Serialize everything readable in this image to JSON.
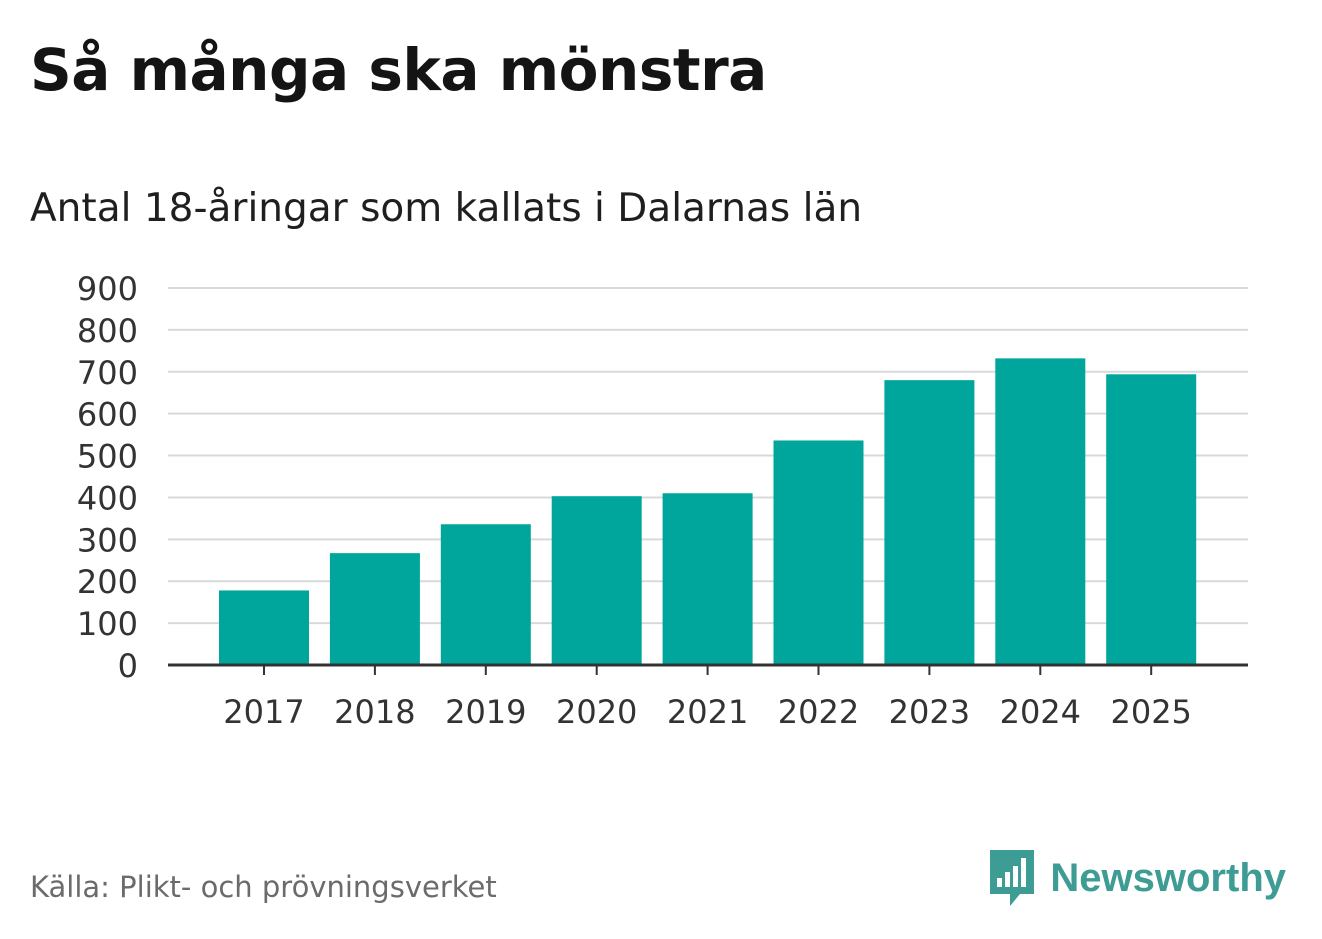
{
  "title": "Så många ska mönstra",
  "subtitle": "Antal 18-åringar som kallats i Dalarnas län",
  "source": "Källa: Plikt- och prövningsverket",
  "brand": {
    "name": "Newsworthy",
    "icon": "newsworthy-logo-icon",
    "color": "#3d9c93"
  },
  "chart_data": {
    "type": "bar",
    "title": "Så många ska mönstra",
    "subtitle": "Antal 18-åringar som kallats i Dalarnas län",
    "categories": [
      "2017",
      "2018",
      "2019",
      "2020",
      "2021",
      "2022",
      "2023",
      "2024",
      "2025"
    ],
    "values": [
      178,
      267,
      336,
      403,
      410,
      536,
      680,
      732,
      694
    ],
    "y_ticks": [
      "0",
      "100",
      "200",
      "300",
      "400",
      "500",
      "600",
      "700",
      "800",
      "900"
    ],
    "ylim": [
      0,
      900
    ],
    "xlabel": "",
    "ylabel": "",
    "grid": true,
    "bar_color": "#00a59b"
  }
}
